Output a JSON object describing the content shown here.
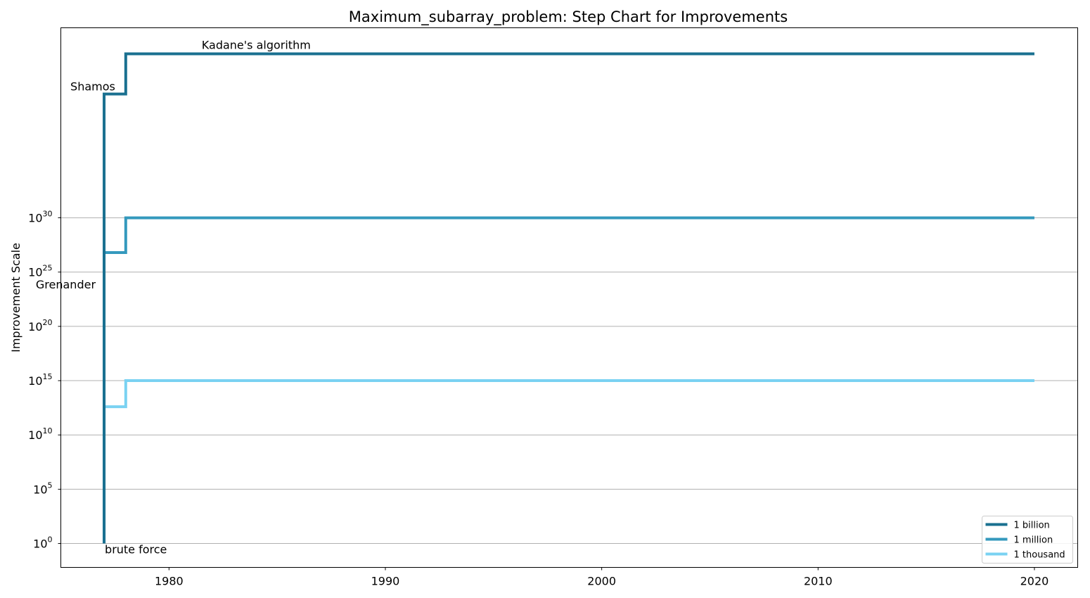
{
  "chart_data": {
    "type": "line",
    "step": true,
    "title": "Maximum_subarray_problem: Step Chart for Improvements",
    "xlabel": "",
    "ylabel": "Improvement Scale",
    "y_scale": "log",
    "xlim": [
      1975,
      2022
    ],
    "ylim_exponent": [
      -2.2,
      47.5
    ],
    "grid": "y",
    "x_ticks": [
      1980,
      1990,
      2000,
      2010,
      2020
    ],
    "y_tick_exponents": [
      0,
      5,
      10,
      15,
      20,
      25,
      30
    ],
    "y_tick_base": "10",
    "legend_position": "lower-right",
    "series": [
      {
        "name": "1 billion",
        "color": "#1a7090",
        "x": [
          1977,
          1977,
          1978,
          2020
        ],
        "y_exponent": [
          0,
          41.4,
          45.1,
          45.1
        ]
      },
      {
        "name": "1 million",
        "color": "#3499bd",
        "x": [
          1977,
          1977,
          1978,
          2020
        ],
        "y_exponent": [
          0,
          26.8,
          30.0,
          30.0
        ]
      },
      {
        "name": "1 thousand",
        "color": "#7ad2f2",
        "x": [
          1977,
          1977,
          1978,
          2020
        ],
        "y_exponent": [
          0,
          12.6,
          15.0,
          15.0
        ]
      }
    ],
    "annotations": [
      {
        "text": "brute force",
        "x": 1977,
        "y_exponent": 0
      },
      {
        "text": "Grenander",
        "x": 1977,
        "y_exponent": 23.5
      },
      {
        "text": "Shamos",
        "x": 1977,
        "y_exponent": 41.4
      },
      {
        "text": "Kadane's algorithm",
        "x": 1978,
        "y_exponent": 45.1
      }
    ]
  }
}
